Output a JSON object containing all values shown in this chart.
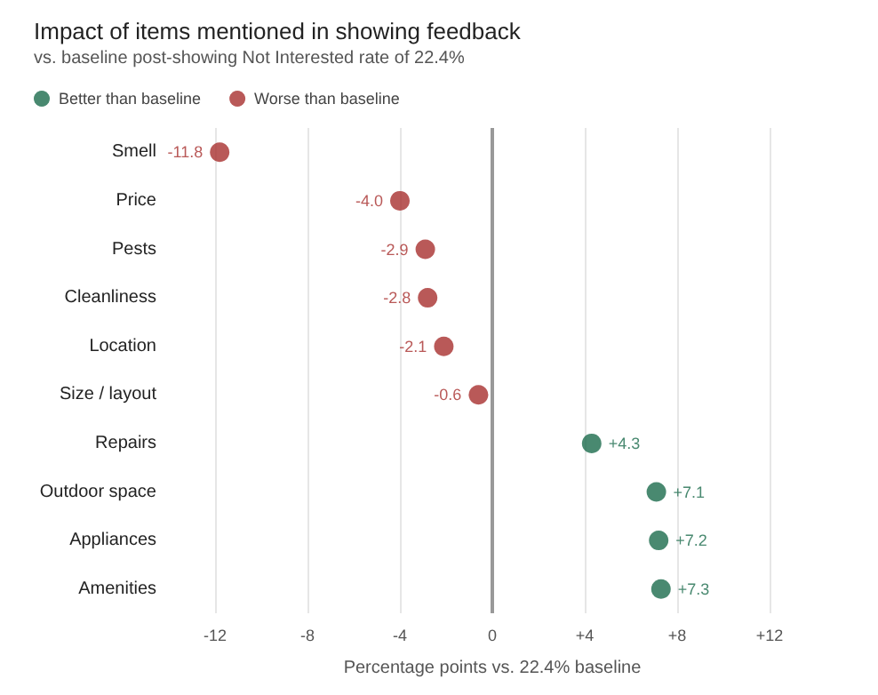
{
  "chart_data": {
    "type": "scatter",
    "title": "Impact of items mentioned in showing feedback",
    "subtitle": "vs. baseline post-showing Not Interested rate of 22.4%",
    "xlabel": "Percentage points vs. 22.4% baseline",
    "orientation": "horizontal",
    "categories": [
      "Smell",
      "Price",
      "Pests",
      "Cleanliness",
      "Location",
      "Size / layout",
      "Repairs",
      "Outdoor space",
      "Appliances",
      "Amenities"
    ],
    "series": [
      {
        "name": "Better than baseline",
        "color": "#1b6b4c",
        "values": [
          null,
          null,
          null,
          null,
          null,
          null,
          4.3,
          7.1,
          7.2,
          7.3
        ],
        "value_labels": [
          null,
          null,
          null,
          null,
          null,
          null,
          "+4.3",
          "+7.1",
          "+7.2",
          "+7.3"
        ]
      },
      {
        "name": "Worse than baseline",
        "color": "#a8302e",
        "values": [
          -11.8,
          -4.0,
          -2.9,
          -2.8,
          -2.1,
          -0.6,
          null,
          null,
          null,
          null
        ],
        "value_labels": [
          "-11.8",
          "-4.0",
          "-2.9",
          "-2.8",
          "-2.1",
          "-0.6",
          null,
          null,
          null,
          null
        ]
      }
    ],
    "xlim": [
      -12,
      12
    ],
    "xticks": [
      -12,
      -8,
      {
        "value": -4,
        "label": "-4"
      },
      0,
      {
        "value": 4,
        "label": "+4"
      },
      {
        "value": 8,
        "label": "+8"
      },
      {
        "value": 12,
        "label": "+12"
      }
    ],
    "ref_lines": [
      {
        "axis": "x",
        "value": 0,
        "color": "#999999"
      }
    ],
    "grid": "x",
    "legend": "top left",
    "marker": "circle"
  }
}
